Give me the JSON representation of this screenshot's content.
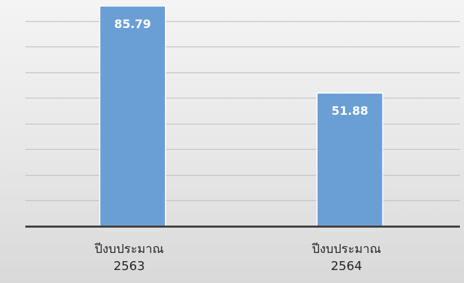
{
  "chart_data": {
    "type": "bar",
    "categories": [
      [
        "ปีงบประมาณ",
        "2563"
      ],
      [
        "ปีงบประมาณ",
        "2564"
      ]
    ],
    "values": [
      85.79,
      51.88
    ],
    "data_labels": [
      "85.79",
      "51.88"
    ],
    "ylim": [
      0,
      90
    ],
    "grid": true,
    "legend": "none",
    "colors": {
      "bar": "#6a9fd6",
      "bar_edge": "#ffffff",
      "grid": "#c3c3c3",
      "axis": "#404040",
      "label": "#ffffff",
      "tick_text": "#262626"
    }
  }
}
